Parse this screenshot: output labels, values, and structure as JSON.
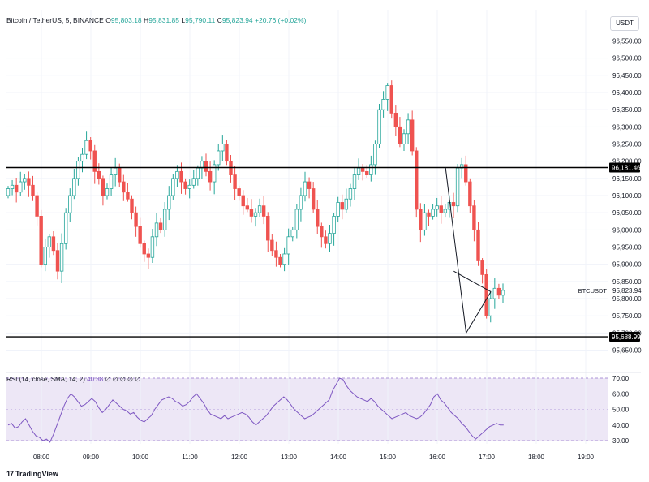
{
  "header": {
    "symbol": "Bitcoin / TetherUS, 5, BINANCE",
    "o_label": "O",
    "o_value": "95,803.18",
    "h_label": "H",
    "h_value": "95,831.85",
    "l_label": "L",
    "l_value": "95,790.11",
    "c_label": "C",
    "c_value": "95,823.94",
    "change": "+20.76 (+0.02%)"
  },
  "currency_button": "USDT",
  "rsi_header": {
    "label": "RSI (14, close, SMA, 14, 2)",
    "value": "40.38",
    "extra": "∅ ∅    ∅ ∅ ∅"
  },
  "brand": "TradingView",
  "colors": {
    "up": "#26a69a",
    "down": "#ef5350",
    "rsi": "#7e57c2",
    "rsi_band": "#ede7f6",
    "hline": "#000000"
  },
  "chart_data": [
    {
      "type": "candlestick",
      "symbol": "BTCUSDT",
      "y_ticks": [
        "96,550.00",
        "96,500.00",
        "96,450.00",
        "96,400.00",
        "96,350.00",
        "96,300.00",
        "96,250.00",
        "96,200.00",
        "96,150.00",
        "96,100.00",
        "96,050.00",
        "96,000.00",
        "95,950.00",
        "95,900.00",
        "95,850.00",
        "95,800.00",
        "95,750.00",
        "95,700.00",
        "95,650.00"
      ],
      "ylim": [
        95630,
        96570
      ],
      "x_ticks": [
        "08:00",
        "09:00",
        "10:00",
        "11:00",
        "12:00",
        "13:00",
        "14:00",
        "15:00",
        "16:00",
        "17:00",
        "18:00",
        "19:00"
      ],
      "horizontal_lines": [
        {
          "value": 96181.46,
          "label": "96,181.46"
        },
        {
          "value": 95688.99,
          "label": "95,688.99"
        }
      ],
      "last_price": {
        "value": 95823.94,
        "label": "95,823.94",
        "symbol_label": "BTCUSDT"
      },
      "closes": [
        96120,
        96130,
        96110,
        96140,
        96150,
        96130,
        96100,
        96040,
        95900,
        95950,
        95980,
        95940,
        95880,
        95960,
        96050,
        96100,
        96150,
        96200,
        96220,
        96260,
        96230,
        96170,
        96150,
        96100,
        96120,
        96160,
        96180,
        96140,
        96110,
        96090,
        96050,
        96010,
        95960,
        95930,
        95920,
        95980,
        96020,
        96000,
        96060,
        96100,
        96150,
        96170,
        96140,
        96120,
        96130,
        96150,
        96180,
        96200,
        96170,
        96140,
        96190,
        96230,
        96250,
        96200,
        96160,
        96120,
        96100,
        96070,
        96060,
        96040,
        96050,
        96070,
        96040,
        95970,
        95940,
        95920,
        95900,
        95930,
        95980,
        96000,
        96060,
        96100,
        96140,
        96120,
        96060,
        96010,
        95980,
        95960,
        95990,
        96040,
        96080,
        96060,
        96090,
        96120,
        96160,
        96180,
        96170,
        96160,
        96190,
        96250,
        96350,
        96380,
        96420,
        96340,
        96300,
        96250,
        96280,
        96320,
        96230,
        96060,
        96000,
        96050,
        96040,
        96060,
        96070,
        96050,
        96060,
        96080,
        96070,
        96180,
        96190,
        96140,
        96070,
        96000,
        95910,
        95870,
        95750,
        95800,
        95830,
        95810,
        95824
      ],
      "trend_lines": [
        {
          "from": [
            "16:10",
            96181
          ],
          "to": [
            "16:35",
            95700
          ]
        },
        {
          "from": [
            "16:35",
            95700
          ],
          "to": [
            "17:05",
            95820
          ]
        },
        {
          "from": [
            "16:20",
            95880
          ],
          "to": [
            "17:05",
            95820
          ]
        }
      ]
    },
    {
      "type": "line",
      "name": "RSI",
      "y_ticks": [
        "70.00",
        "60.00",
        "50.00",
        "40.00",
        "30.00"
      ],
      "ylim": [
        28,
        74
      ],
      "band": [
        30,
        70
      ],
      "mid": 50,
      "values": [
        40,
        41,
        38,
        39,
        42,
        44,
        40,
        36,
        33,
        32,
        30,
        31,
        29,
        34,
        40,
        46,
        52,
        57,
        60,
        58,
        55,
        52,
        53,
        55,
        57,
        55,
        51,
        48,
        50,
        53,
        56,
        54,
        52,
        50,
        49,
        47,
        48,
        45,
        43,
        42,
        44,
        46,
        50,
        53,
        56,
        57,
        58,
        57,
        55,
        54,
        52,
        53,
        55,
        58,
        60,
        57,
        54,
        50,
        47,
        46,
        45,
        44,
        46,
        44,
        45,
        46,
        47,
        48,
        47,
        45,
        42,
        40,
        42,
        44,
        46,
        49,
        52,
        54,
        56,
        58,
        56,
        53,
        50,
        48,
        46,
        44,
        45,
        46,
        48,
        50,
        52,
        54,
        56,
        62,
        66,
        70,
        69,
        65,
        62,
        60,
        58,
        57,
        56,
        55,
        57,
        55,
        52,
        50,
        48,
        46,
        44,
        45,
        46,
        47,
        48,
        46,
        45,
        44,
        45,
        47,
        50,
        53,
        58,
        60,
        56,
        54,
        51,
        48,
        46,
        44,
        41,
        39,
        36,
        33,
        31,
        33,
        35,
        37,
        39,
        40,
        41,
        40,
        40
      ]
    }
  ]
}
